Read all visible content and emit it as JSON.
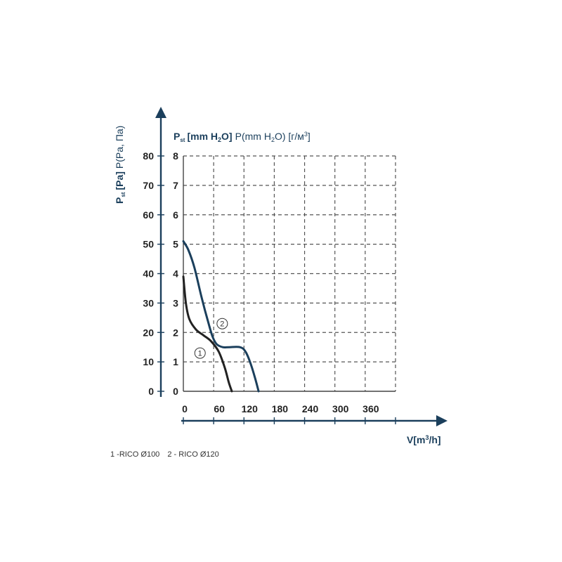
{
  "chart_data": {
    "type": "line",
    "x_ticks": [
      "0",
      "60",
      "120",
      "180",
      "240",
      "300",
      "360"
    ],
    "x_range": [
      0,
      420
    ],
    "y_ticks_pa": [
      "0",
      "10",
      "20",
      "30",
      "40",
      "50",
      "60",
      "70",
      "80"
    ],
    "y_ticks_mm": [
      "0",
      "1",
      "2",
      "3",
      "4",
      "5",
      "6",
      "7",
      "8"
    ],
    "y_range_mm": [
      0,
      8
    ],
    "grid": true,
    "y_axis_title": {
      "left_vertical_bold": "P",
      "left_vertical_sub": "st",
      "left_vertical_bold2": "[Pa]",
      "left_vertical_light": "P(Pa, Па)",
      "top_bold": "P",
      "top_sub": "st",
      "top_bold2": "[mm H",
      "top_bold_sub": "2",
      "top_bold3": "O]",
      "top_light": "P(mm H",
      "top_light_sub": "2",
      "top_light2": "O) [г/м",
      "top_light_sup": "3",
      "top_light3": "]"
    },
    "x_axis_title": {
      "main": "V[m",
      "sup": "3",
      "tail": "/h]"
    },
    "series": [
      {
        "name": "1",
        "color": "#222222",
        "points": [
          [
            0,
            3.9
          ],
          [
            5,
            3.0
          ],
          [
            12,
            2.45
          ],
          [
            25,
            2.1
          ],
          [
            40,
            1.9
          ],
          [
            55,
            1.7
          ],
          [
            70,
            1.35
          ],
          [
            82,
            0.8
          ],
          [
            90,
            0.3
          ],
          [
            96,
            0
          ]
        ]
      },
      {
        "name": "2",
        "color": "#1b3f5c",
        "points": [
          [
            0,
            5.1
          ],
          [
            10,
            4.8
          ],
          [
            22,
            4.2
          ],
          [
            36,
            3.2
          ],
          [
            50,
            2.3
          ],
          [
            58,
            1.85
          ],
          [
            66,
            1.6
          ],
          [
            78,
            1.5
          ],
          [
            90,
            1.5
          ],
          [
            112,
            1.5
          ],
          [
            123,
            1.35
          ],
          [
            133,
            0.95
          ],
          [
            142,
            0.45
          ],
          [
            149,
            0
          ]
        ]
      }
    ],
    "markers": [
      {
        "label": "1",
        "x": 33,
        "y": 1.3
      },
      {
        "label": "2",
        "x": 77,
        "y": 2.3
      }
    ]
  },
  "legend": {
    "item1": "1 -RICO Ø100",
    "item2": "2 - RICO Ø120"
  }
}
